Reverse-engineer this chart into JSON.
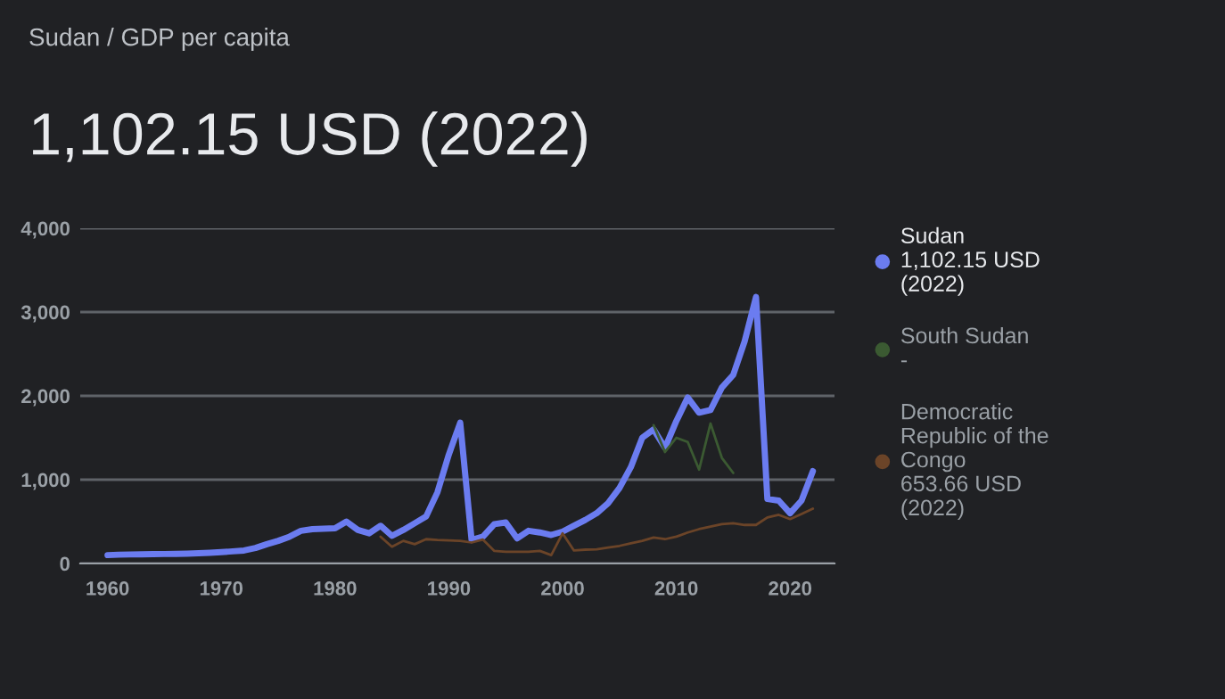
{
  "chart_data": {
    "type": "line",
    "title": "1,102.15 USD (2022)",
    "subtitle": "Sudan / GDP per capita",
    "annotations": [
      "1,102.15 USD (2022)",
      "-",
      "653.66 USD (2022)"
    ],
    "series": [
      {
        "name": "Sudan",
        "color": "#6b7cf0",
        "x": [
          1960,
          1961,
          1962,
          1963,
          1964,
          1965,
          1966,
          1967,
          1968,
          1969,
          1970,
          1971,
          1972,
          1973,
          1974,
          1975,
          1976,
          1977,
          1978,
          1979,
          1980,
          1981,
          1982,
          1983,
          1984,
          1985,
          1986,
          1987,
          1988,
          1989,
          1990,
          1991,
          1992,
          1993,
          1994,
          1995,
          1996,
          1997,
          1998,
          1999,
          2000,
          2001,
          2002,
          2003,
          2004,
          2005,
          2006,
          2007,
          2008,
          2009,
          2010,
          2011,
          2012,
          2013,
          2014,
          2015,
          2016,
          2017,
          2018,
          2019,
          2020,
          2021,
          2022
        ],
        "values": [
          100,
          105,
          108,
          110,
          112,
          113,
          115,
          118,
          122,
          128,
          135,
          145,
          155,
          185,
          230,
          270,
          320,
          390,
          410,
          415,
          420,
          500,
          400,
          360,
          450,
          330,
          400,
          480,
          560,
          850,
          1300,
          1680,
          280,
          320,
          470,
          490,
          300,
          390,
          370,
          340,
          380,
          450,
          520,
          600,
          720,
          900,
          1150,
          1500,
          1600,
          1380,
          1700,
          1980,
          1800,
          1830,
          2100,
          2250,
          2650,
          3180,
          770,
          750,
          600,
          750,
          1102.15
        ]
      },
      {
        "name": "South Sudan",
        "color": "#3b5a32",
        "x": [
          2008,
          2009,
          2010,
          2011,
          2012,
          2013,
          2014,
          2015
        ],
        "values": [
          1650,
          1330,
          1500,
          1450,
          1120,
          1670,
          1260,
          1080
        ]
      },
      {
        "name": "Democratic Republic of the Congo",
        "color": "#6b4428",
        "x": [
          1984,
          1985,
          1986,
          1987,
          1988,
          1989,
          1990,
          1991,
          1992,
          1993,
          1994,
          1995,
          1996,
          1997,
          1998,
          1999,
          2000,
          2001,
          2002,
          2003,
          2004,
          2005,
          2006,
          2007,
          2008,
          2009,
          2010,
          2011,
          2012,
          2013,
          2014,
          2015,
          2016,
          2017,
          2018,
          2019,
          2020,
          2021,
          2022
        ],
        "values": [
          320,
          200,
          270,
          230,
          290,
          280,
          275,
          270,
          250,
          285,
          150,
          140,
          140,
          140,
          150,
          100,
          360,
          155,
          165,
          170,
          190,
          210,
          240,
          270,
          310,
          290,
          320,
          370,
          410,
          440,
          470,
          480,
          460,
          460,
          550,
          580,
          530,
          590,
          653.66
        ]
      }
    ],
    "xlim": [
      1957.6,
      2023.9
    ],
    "ylim": [
      0,
      4000
    ],
    "xticks": [
      1960,
      1970,
      1980,
      1990,
      2000,
      2010,
      2020
    ],
    "yticks": [
      0,
      {
        "value": 1000,
        "label": "1,000"
      },
      {
        "value": 2000,
        "label": "2,000"
      },
      {
        "value": 3000,
        "label": "3,000"
      },
      {
        "value": 4000,
        "label": "4,000"
      }
    ],
    "grid": "y",
    "legend": "right",
    "marker": "none",
    "line_style": "solid"
  }
}
